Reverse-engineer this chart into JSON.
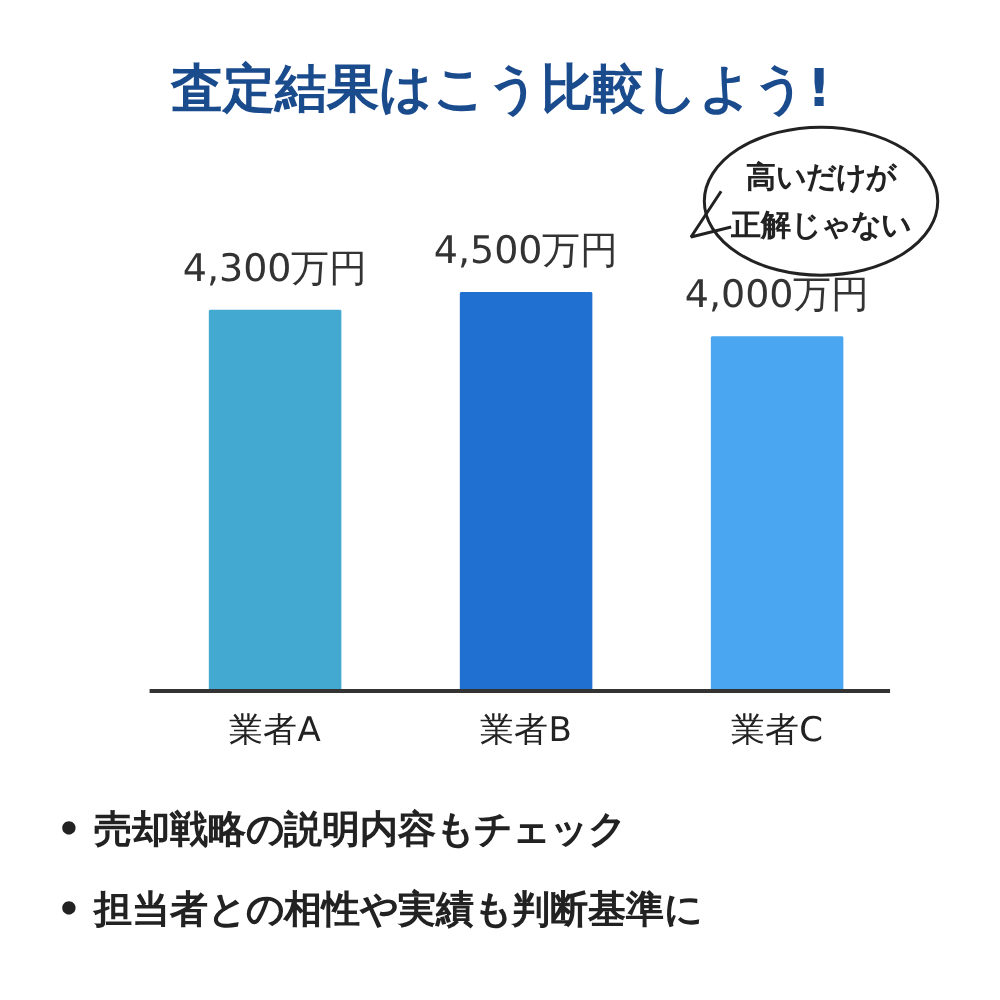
{
  "chart_data": {
    "type": "bar",
    "title": "査定結果はこう比較しよう!",
    "categories": [
      "業者A",
      "業者B",
      "業者C"
    ],
    "values": [
      4300,
      4500,
      4000
    ],
    "colors": [
      "#44a9d1",
      "#1f70d1",
      "#4aa6f0"
    ],
    "value_labels": [
      "4,300万円",
      "4,500万円",
      "4,000万円"
    ],
    "annotations": [
      "高いだけが",
      "正解じゃない",
      "• 売却戦略の説明内容もチェック",
      "• 担当者との相性や実績も判断基準に"
    ]
  }
}
